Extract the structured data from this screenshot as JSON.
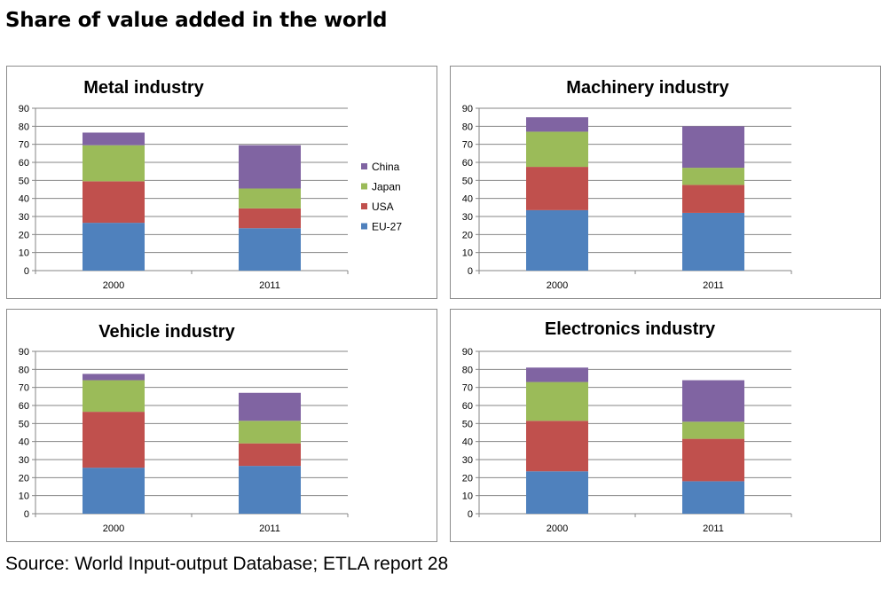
{
  "title": "Share of value added in the world",
  "source": "Source: World Input-output Database; ETLA report 28",
  "colors": {
    "EU-27": "#4f81bd",
    "USA": "#c0504d",
    "Japan": "#9bbb59",
    "China": "#8064a2"
  },
  "legend": [
    "China",
    "Japan",
    "USA",
    "EU-27"
  ],
  "chart_data": [
    {
      "type": "bar",
      "stacked": true,
      "title": "Metal industry",
      "categories": [
        "2000",
        "2011"
      ],
      "ylim": [
        0,
        90
      ],
      "yticks": [
        0,
        10,
        20,
        30,
        40,
        50,
        60,
        70,
        80,
        90
      ],
      "grid": true,
      "legend_position": "right",
      "series": [
        {
          "name": "EU-27",
          "values": [
            26.5,
            23.5
          ]
        },
        {
          "name": "USA",
          "values": [
            23,
            11
          ]
        },
        {
          "name": "Japan",
          "values": [
            20,
            11
          ]
        },
        {
          "name": "China",
          "values": [
            7,
            24
          ]
        }
      ]
    },
    {
      "type": "bar",
      "stacked": true,
      "title": "Machinery industry",
      "categories": [
        "2000",
        "2011"
      ],
      "ylim": [
        0,
        90
      ],
      "yticks": [
        0,
        10,
        20,
        30,
        40,
        50,
        60,
        70,
        80,
        90
      ],
      "grid": true,
      "legend_position": "none",
      "series": [
        {
          "name": "EU-27",
          "values": [
            33.5,
            32
          ]
        },
        {
          "name": "USA",
          "values": [
            24,
            15.5
          ]
        },
        {
          "name": "Japan",
          "values": [
            19.5,
            9.5
          ]
        },
        {
          "name": "China",
          "values": [
            8,
            23
          ]
        }
      ]
    },
    {
      "type": "bar",
      "stacked": true,
      "title": "Vehicle industry",
      "categories": [
        "2000",
        "2011"
      ],
      "ylim": [
        0,
        90
      ],
      "yticks": [
        0,
        10,
        20,
        30,
        40,
        50,
        60,
        70,
        80,
        90
      ],
      "grid": true,
      "legend_position": "none",
      "series": [
        {
          "name": "EU-27",
          "values": [
            25.5,
            26.5
          ]
        },
        {
          "name": "USA",
          "values": [
            31,
            12.5
          ]
        },
        {
          "name": "Japan",
          "values": [
            17.5,
            12.5
          ]
        },
        {
          "name": "China",
          "values": [
            3.5,
            15.5
          ]
        }
      ]
    },
    {
      "type": "bar",
      "stacked": true,
      "title": "Electronics industry",
      "categories": [
        "2000",
        "2011"
      ],
      "ylim": [
        0,
        90
      ],
      "yticks": [
        0,
        10,
        20,
        30,
        40,
        50,
        60,
        70,
        80,
        90
      ],
      "grid": true,
      "legend_position": "none",
      "series": [
        {
          "name": "EU-27",
          "values": [
            23.5,
            18
          ]
        },
        {
          "name": "USA",
          "values": [
            28,
            23.5
          ]
        },
        {
          "name": "Japan",
          "values": [
            21.5,
            9.5
          ]
        },
        {
          "name": "China",
          "values": [
            8,
            23
          ]
        }
      ]
    }
  ]
}
